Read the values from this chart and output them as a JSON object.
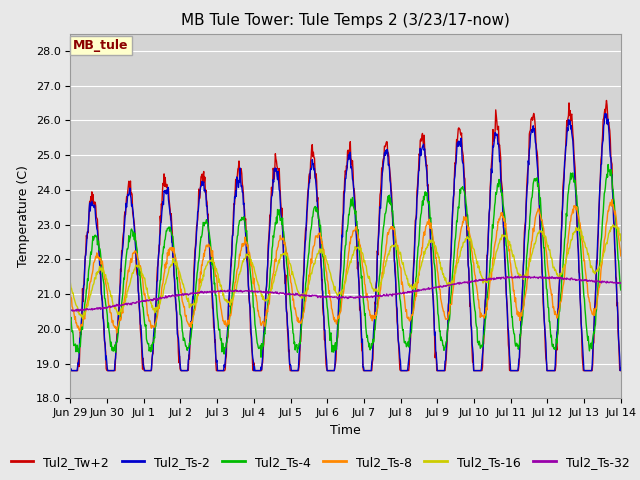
{
  "title": "MB Tule Tower: Tule Temps 2 (3/23/17-now)",
  "xlabel": "Time",
  "ylabel": "Temperature (C)",
  "ylim": [
    18.0,
    28.5
  ],
  "yticks": [
    18.0,
    19.0,
    20.0,
    21.0,
    22.0,
    23.0,
    24.0,
    25.0,
    26.0,
    27.0,
    28.0
  ],
  "xtick_labels": [
    "Jun 29",
    "Jun 30",
    "Jul 1",
    "Jul 2",
    "Jul 3",
    "Jul 4",
    "Jul 5",
    "Jul 6",
    "Jul 7",
    "Jul 8",
    "Jul 9",
    "Jul 10",
    "Jul 11",
    "Jul 12",
    "Jul 13",
    "Jul 14"
  ],
  "series_colors": [
    "#cc0000",
    "#0000cc",
    "#00bb00",
    "#ff8800",
    "#cccc00",
    "#9900aa"
  ],
  "series_labels": [
    "Tul2_Tw+2",
    "Tul2_Ts-2",
    "Tul2_Ts-4",
    "Tul2_Ts-8",
    "Tul2_Ts-16",
    "Tul2_Ts-32"
  ],
  "legend_label": "MB_tule",
  "background_color": "#e8e8e8",
  "plot_bg_color": "#d4d4d4",
  "grid_color": "#ffffff",
  "title_fontsize": 11,
  "axis_fontsize": 9,
  "tick_fontsize": 8,
  "legend_fontsize": 9,
  "linewidth": 1.0
}
